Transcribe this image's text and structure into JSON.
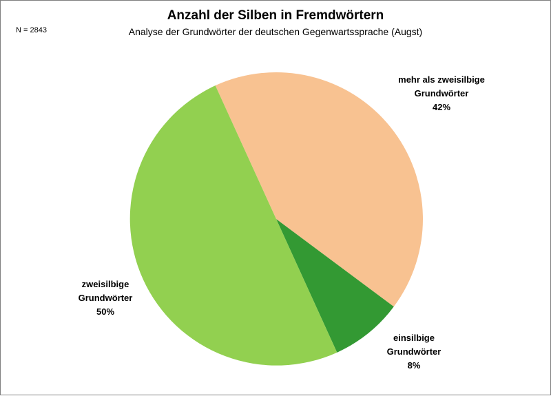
{
  "chart_data": {
    "type": "pie",
    "title": "Anzahl der Silben in Fremdwörtern",
    "subtitle": "Analyse der Grundwörter der deutschen Gegenwartssprache (Augst)",
    "note": "N = 2843",
    "slices": [
      {
        "label_lines": [
          "mehr als zweisilbige",
          "Grundwörter",
          "42%"
        ],
        "value": 42,
        "color": "#f8c291"
      },
      {
        "label_lines": [
          "einsilbige",
          "Grundwörter",
          "8%"
        ],
        "value": 8,
        "color": "#339933"
      },
      {
        "label_lines": [
          "zweisilbige",
          "Grundwörter",
          "50%"
        ],
        "value": 50,
        "color": "#92d050"
      }
    ],
    "start_angle_deg": -24.5,
    "direction": "clockwise",
    "legend": "none"
  }
}
